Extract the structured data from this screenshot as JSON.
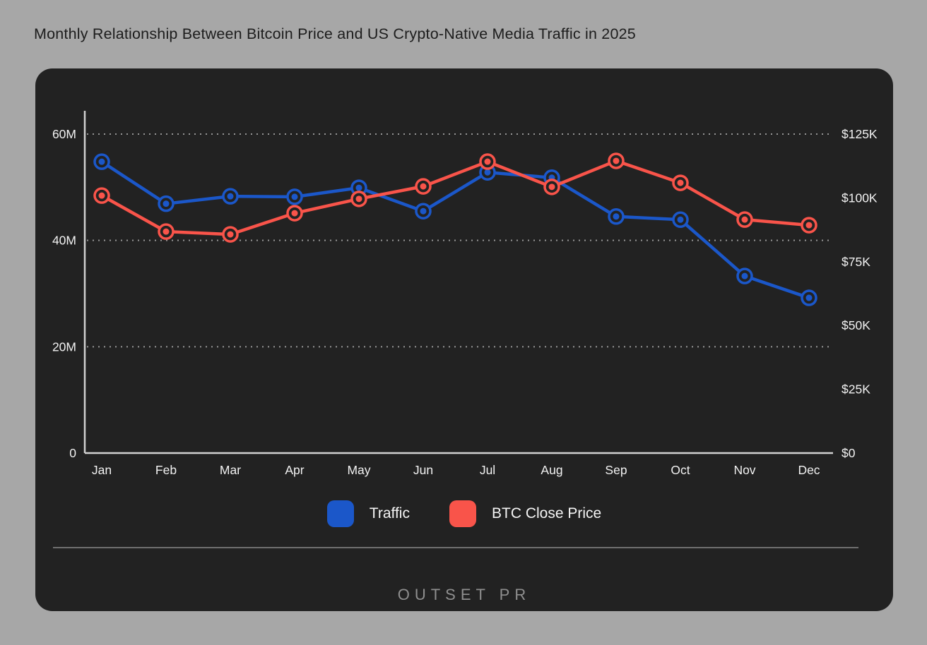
{
  "title": "Monthly Relationship Between Bitcoin Price and US Crypto-Native Media Traffic in 2025",
  "chart_data": {
    "type": "line",
    "title": "Monthly Relationship Between Bitcoin Price and US Crypto-Native Media Traffic in 2025",
    "categories": [
      "Jan",
      "Feb",
      "Mar",
      "Apr",
      "May",
      "Jun",
      "Jul",
      "Aug",
      "Sep",
      "Oct",
      "Nov",
      "Dec"
    ],
    "series": [
      {
        "name": "Traffic",
        "axis": "left",
        "unit": "monthly visits, millions",
        "color": "#1b57c9",
        "values": [
          54.8,
          46.9,
          48.3,
          48.2,
          49.9,
          45.5,
          52.8,
          51.8,
          44.5,
          43.9,
          33.3,
          29.2
        ]
      },
      {
        "name": "BTC Close Price",
        "axis": "right",
        "unit": "USD, thousands",
        "color": "#f9544a",
        "values": [
          100.9,
          86.8,
          85.7,
          94.0,
          99.6,
          104.5,
          114.2,
          104.3,
          114.5,
          105.9,
          91.5,
          89.3
        ]
      }
    ],
    "left_axis": {
      "min": 0,
      "max": 60,
      "ticks": [
        {
          "value": 0,
          "label": "0"
        },
        {
          "value": 20,
          "label": "20M"
        },
        {
          "value": 40,
          "label": "40M"
        },
        {
          "value": 60,
          "label": "60M"
        }
      ],
      "grid_values": [
        20,
        40,
        60
      ]
    },
    "right_axis": {
      "min": 0,
      "max": 125,
      "ticks": [
        {
          "value": 0,
          "label": "$0"
        },
        {
          "value": 25,
          "label": "$25K"
        },
        {
          "value": 50,
          "label": "$50K"
        },
        {
          "value": 75,
          "label": "$75K"
        },
        {
          "value": 100,
          "label": "$100K"
        },
        {
          "value": 125,
          "label": "$125K"
        }
      ]
    },
    "grid": "dotted horizontal lines at left-axis ticks",
    "legend_position": "bottom center",
    "marker": "ring with center dot"
  },
  "legend": [
    {
      "label": "Traffic",
      "color": "#1b57c9"
    },
    {
      "label": "BTC Close Price",
      "color": "#f9544a"
    }
  ],
  "footer": {
    "logo_text": "OUTSET PR"
  },
  "colors": {
    "page_bg": "#a7a7a7",
    "card_bg": "#222222",
    "title_text": "#1d1d1d",
    "axis_line": "#d2d2d2",
    "grid_line": "#969696",
    "tick_text": "#f2f2f2",
    "legend_text": "#f5f5f5",
    "divider": "#6f6f6f",
    "logo_text": "#8f8f8f",
    "traffic_blue": "#1b57c9",
    "btc_red": "#f9544a"
  }
}
